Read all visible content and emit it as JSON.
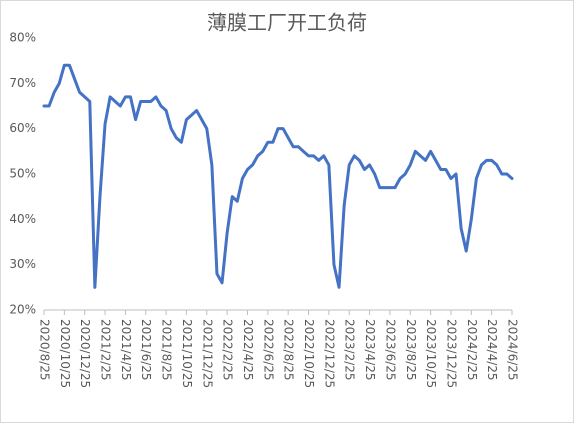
{
  "chart_data": {
    "type": "line",
    "title": "薄膜工厂开工负荷",
    "categories": [
      "2020/8/25",
      null,
      null,
      null,
      "2020/10/25",
      null,
      null,
      null,
      "2020/12/25",
      null,
      null,
      null,
      "2021/2/25",
      null,
      null,
      null,
      "2021/4/25",
      null,
      null,
      null,
      "2021/6/25",
      null,
      null,
      null,
      "2021/8/25",
      null,
      null,
      null,
      "2021/10/25",
      null,
      null,
      null,
      "2021/12/25",
      null,
      null,
      null,
      "2022/2/25",
      null,
      null,
      null,
      "2022/4/25",
      null,
      null,
      null,
      "2022/6/25",
      null,
      null,
      null,
      "2022/8/25",
      null,
      null,
      null,
      "2022/10/25",
      null,
      null,
      null,
      "2022/12/25",
      null,
      null,
      null,
      "2023/2/25",
      null,
      null,
      null,
      "2023/4/25",
      null,
      null,
      null,
      "2023/6/25",
      null,
      null,
      null,
      "2023/8/25",
      null,
      null,
      null,
      "2023/10/25",
      null,
      null,
      null,
      "2023/12/25",
      null,
      null,
      null,
      "2024/2/25",
      null,
      null,
      null,
      "2024/4/25",
      null,
      null,
      null,
      "2024/6/25"
    ],
    "values": [
      65,
      65,
      68,
      70,
      74,
      74,
      71,
      68,
      67,
      66,
      25,
      45,
      61,
      67,
      66,
      65,
      67,
      67,
      62,
      66,
      66,
      66,
      67,
      65,
      64,
      60,
      58,
      57,
      62,
      63,
      64,
      62,
      60,
      52,
      28,
      26,
      37,
      45,
      44,
      49,
      51,
      52,
      54,
      55,
      57,
      57,
      60,
      60,
      58,
      56,
      56,
      55,
      54,
      54,
      53,
      54,
      52,
      30,
      25,
      43,
      52,
      54,
      53,
      51,
      52,
      50,
      47,
      47,
      47,
      47,
      49,
      50,
      52,
      55,
      54,
      53,
      55,
      53,
      51,
      51,
      49,
      50,
      38,
      33,
      40,
      49,
      52,
      53,
      53,
      52,
      50,
      50,
      49
    ],
    "color": "#4472c4",
    "ylim": [
      20,
      80
    ],
    "yticks": [
      {
        "value": 20,
        "label": "20%"
      },
      {
        "value": 30,
        "label": "30%"
      },
      {
        "value": 40,
        "label": "40%"
      },
      {
        "value": 50,
        "label": "50%"
      },
      {
        "value": 60,
        "label": "60%"
      },
      {
        "value": 70,
        "label": "70%"
      },
      {
        "value": 80,
        "label": "80%"
      }
    ],
    "grid": false
  }
}
